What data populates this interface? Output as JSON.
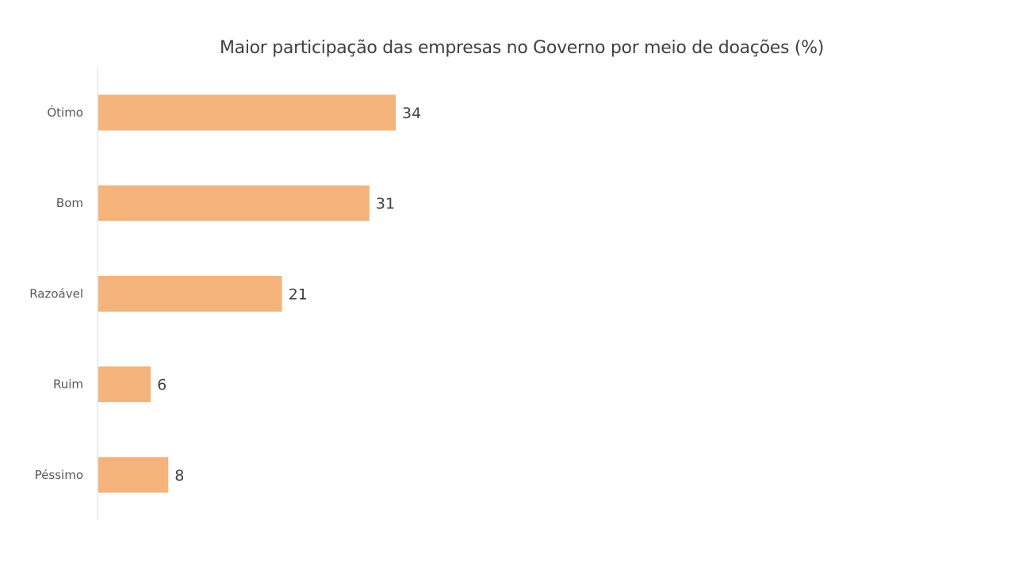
{
  "chart_data": {
    "type": "bar",
    "orientation": "horizontal",
    "title": "Maior participação das empresas no Governo por meio de doações (%)",
    "categories": [
      "Ótimo",
      "Bom",
      "Razoável",
      "Ruim",
      "Péssimo"
    ],
    "values": [
      34,
      31,
      21,
      6,
      8
    ],
    "xlim": [
      0,
      100
    ],
    "grid": false,
    "legend": "none",
    "bar_color": "#F4B37A",
    "axis_color": "#D9D9D9"
  }
}
